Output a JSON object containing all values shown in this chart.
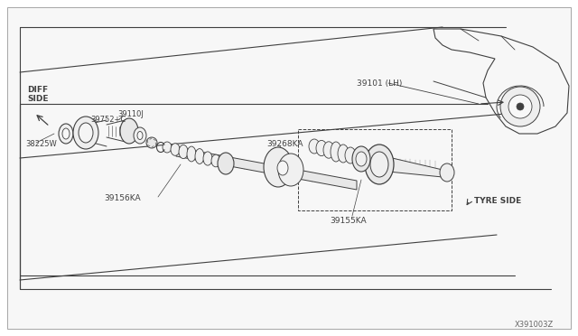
{
  "bg_color": "#ffffff",
  "fig_width": 6.4,
  "fig_height": 3.72,
  "dpi": 100,
  "watermark": "X391003Z",
  "lc": "#404040",
  "labels": {
    "diff_side": "DIFF\nSIDE",
    "tyre_side": "TYRE SIDE",
    "p39101": "39101 (LH)",
    "p39752": "39752+C",
    "p39110": "39110J",
    "p38225": "38225W",
    "p39156": "39156KA",
    "p39268": "39268KA",
    "p39155": "39155KA"
  }
}
